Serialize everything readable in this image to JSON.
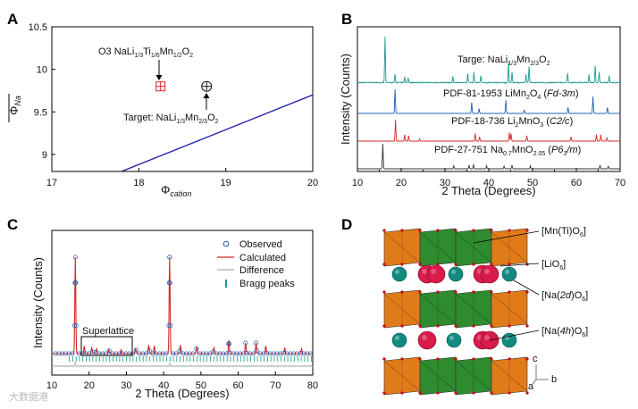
{
  "panels": {
    "A": "A",
    "B": "B",
    "C": "C",
    "D": "D"
  },
  "watermark": "大数据港",
  "chart_data": [
    {
      "id": "A",
      "type": "scatter",
      "xlabel": "Φ",
      "xlabel_sub": "cation",
      "ylabel": "Φ",
      "ylabel_sub": "Na",
      "xlim": [
        17,
        20
      ],
      "ylim": [
        8.8,
        10.5
      ],
      "xticks": [
        "17",
        "18",
        "19",
        "20"
      ],
      "yticks": [
        "9",
        "9.5",
        "10",
        "10.5"
      ],
      "line": {
        "x": [
          17.8,
          20.0
        ],
        "y": [
          8.8,
          9.7
        ]
      },
      "points": [
        {
          "x": 18.25,
          "y": 9.8,
          "marker": "boxed-plus",
          "color": "#d62728"
        },
        {
          "x": 18.78,
          "y": 9.8,
          "marker": "circled-plus",
          "color": "#111111"
        }
      ],
      "annotations": [
        {
          "text": "O3 NaLi",
          "s1": "1/3",
          "t2": "Ti",
          "s2": "1/6",
          "t3": "Mn",
          "s3": "1/2",
          "t4": "O",
          "s4": "2"
        },
        {
          "text": "Target: NaLi",
          "s1": "1/3",
          "t2": "Mn",
          "s2": "2/3",
          "t3": "O",
          "s3": "2"
        }
      ]
    },
    {
      "id": "B",
      "type": "line",
      "xlabel": "2 Theta (Degrees)",
      "ylabel": "Intensity (Counts)",
      "xlim": [
        10,
        70
      ],
      "xticks": [
        "10",
        "20",
        "30",
        "40",
        "50",
        "60",
        "70"
      ],
      "series": [
        {
          "name": "Targe: NaLi1/3Mn2/3O2",
          "color": "#1a9a8a",
          "peaks": [
            [
              16.3,
              1.0
            ],
            [
              18.6,
              0.18
            ],
            [
              20.8,
              0.12
            ],
            [
              21.6,
              0.1
            ],
            [
              31.8,
              0.14
            ],
            [
              35.2,
              0.2
            ],
            [
              36.6,
              0.22
            ],
            [
              38.2,
              0.15
            ],
            [
              44.5,
              0.45
            ],
            [
              45.3,
              0.22
            ],
            [
              48.5,
              0.18
            ],
            [
              49.2,
              0.35
            ],
            [
              58.0,
              0.2
            ],
            [
              62.9,
              0.18
            ],
            [
              64.3,
              0.35
            ],
            [
              65.2,
              0.22
            ],
            [
              67.5,
              0.15
            ]
          ]
        },
        {
          "name": "PDF-81-1953 LiMn2O4 (Fd-3m)",
          "color": "#1f5fb4",
          "peaks": [
            [
              18.6,
              1.0
            ],
            [
              36.1,
              0.45
            ],
            [
              37.8,
              0.2
            ],
            [
              43.9,
              0.55
            ],
            [
              48.1,
              0.15
            ],
            [
              58.1,
              0.25
            ],
            [
              63.8,
              0.7
            ],
            [
              67.1,
              0.25
            ]
          ]
        },
        {
          "name": "PDF-18-736 Li2MnO3 (C2/c)",
          "color": "#d62728",
          "peaks": [
            [
              18.7,
              1.0
            ],
            [
              20.8,
              0.3
            ],
            [
              21.7,
              0.25
            ],
            [
              24.2,
              0.1
            ],
            [
              36.9,
              0.35
            ],
            [
              37.9,
              0.2
            ],
            [
              44.7,
              0.4
            ],
            [
              45.1,
              0.35
            ],
            [
              48.7,
              0.25
            ],
            [
              58.8,
              0.2
            ],
            [
              64.6,
              0.3
            ],
            [
              65.6,
              0.3
            ],
            [
              67.0,
              0.15
            ]
          ]
        },
        {
          "name": "PDF-27-751 Na0.7MnO2.05 (P63/m)",
          "color": "#333333",
          "peaks": [
            [
              15.8,
              1.0
            ],
            [
              32.0,
              0.12
            ],
            [
              35.5,
              0.15
            ],
            [
              36.5,
              0.18
            ],
            [
              39.5,
              0.12
            ],
            [
              43.5,
              0.1
            ],
            [
              45.3,
              0.15
            ],
            [
              49.5,
              0.12
            ],
            [
              65.4,
              0.15
            ],
            [
              67.3,
              0.1
            ]
          ]
        }
      ],
      "labels": [
        {
          "pre": "Targe: NaLi",
          "s1": "1/3",
          "t2": "Mn",
          "s2": "2/3",
          "t3": "O",
          "s3": "2"
        },
        {
          "pre": "PDF-81-1953 LiMn",
          "s1": "2",
          "t2": "O",
          "s2": "4",
          "t3": " (",
          "i1": "Fd-3m",
          "t4": ")"
        },
        {
          "pre": "PDF-18-736 Li",
          "s1": "2",
          "t2": "MnO",
          "s2": "3",
          "t3": " (",
          "i1": "C2/c",
          "t4": ")"
        },
        {
          "pre": "PDF-27-751 Na",
          "s1": "0.7",
          "t2": "MnO",
          "s2": "2.05",
          "t3": " (",
          "i1": "P6",
          "s3": "3",
          "i2": "/m",
          "t4": ")"
        }
      ]
    },
    {
      "id": "C",
      "type": "line",
      "xlabel": "2 Theta (Degrees)",
      "ylabel": "Intensity (Counts)",
      "xlim": [
        10,
        80
      ],
      "xticks": [
        "10",
        "20",
        "30",
        "40",
        "50",
        "60",
        "70",
        "80"
      ],
      "legend": [
        "Observed",
        "Calculated",
        "Difference",
        "Bragg peaks"
      ],
      "legend_position": "top-right",
      "box_label": "Superlattice",
      "peaks": [
        [
          16.3,
          1.0
        ],
        [
          18.7,
          0.08
        ],
        [
          20.7,
          0.06
        ],
        [
          22.0,
          0.05
        ],
        [
          25.3,
          0.04
        ],
        [
          28.6,
          0.04
        ],
        [
          32.5,
          0.05
        ],
        [
          36.0,
          0.09
        ],
        [
          37.5,
          0.08
        ],
        [
          41.6,
          1.0
        ],
        [
          44.5,
          0.09
        ],
        [
          48.9,
          0.07
        ],
        [
          53.5,
          0.06
        ],
        [
          57.5,
          0.14
        ],
        [
          62.0,
          0.11
        ],
        [
          64.8,
          0.11
        ],
        [
          67.4,
          0.08
        ],
        [
          72.5,
          0.06
        ],
        [
          77.0,
          0.05
        ]
      ]
    },
    {
      "id": "D",
      "type": "diagram",
      "labels": [
        {
          "pre": "[Mn(Ti)O",
          "s": "6",
          "post": "]"
        },
        {
          "pre": "[LiO",
          "s": "6",
          "post": "]"
        },
        {
          "pre": "[Na(",
          "i": "2d",
          "mid": ")O",
          "s": "6",
          "post": "]"
        },
        {
          "pre": "[Na(",
          "i": "4h",
          "mid": ")O",
          "s": "6",
          "post": "]"
        }
      ],
      "axes": [
        "c",
        "b",
        "a"
      ]
    }
  ]
}
